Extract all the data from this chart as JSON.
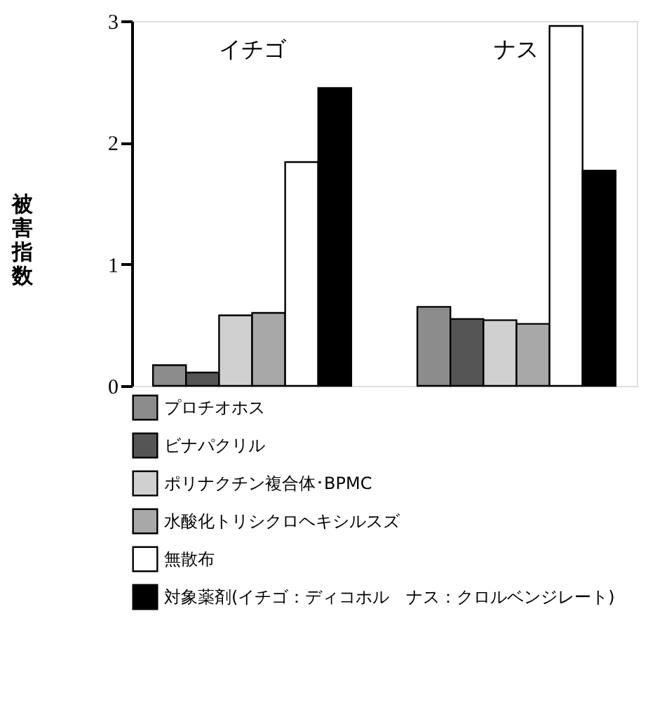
{
  "chart_data": {
    "type": "bar",
    "ylabel": "被害指数",
    "categories": [
      "イチゴ",
      "ナス"
    ],
    "series": [
      {
        "name": "プロチオホス",
        "color": "#8c8c8c",
        "values": [
          0.17,
          0.65
        ]
      },
      {
        "name": "ビナパクリル",
        "color": "#555555",
        "values": [
          0.11,
          0.55
        ]
      },
      {
        "name": "ポリナクチン複合体･BPMC",
        "color": "#d0d0d0",
        "values": [
          0.58,
          0.54
        ]
      },
      {
        "name": "水酸化トリシクロヘキシルスズ",
        "color": "#a8a8a8",
        "values": [
          0.6,
          0.51
        ]
      },
      {
        "name": "無散布",
        "color": "#ffffff",
        "values": [
          1.84,
          2.96
        ]
      },
      {
        "name": "対象薬剤(イチゴ：ディコホル　ナス：クロルベンジレート)",
        "color": "#000000",
        "values": [
          2.45,
          1.77
        ]
      }
    ],
    "ylim": [
      0,
      3
    ],
    "yticks": [
      0,
      1,
      2,
      3
    ],
    "grid": false,
    "legend": "bottom"
  }
}
